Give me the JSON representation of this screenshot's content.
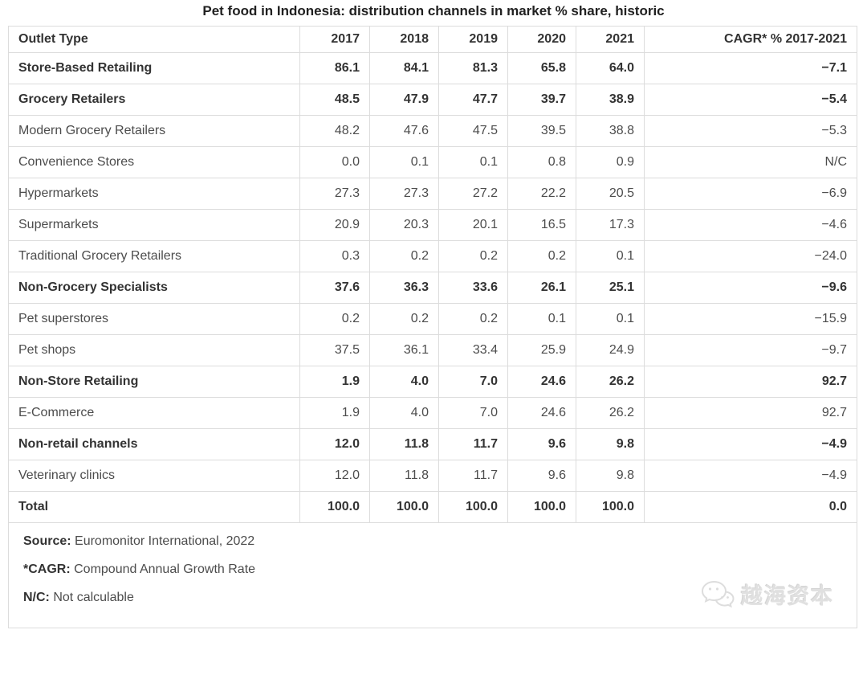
{
  "chart_data": {
    "type": "table",
    "title": "Pet food in Indonesia: distribution channels in market % share, historic",
    "columns": [
      "Outlet Type",
      "2017",
      "2018",
      "2019",
      "2020",
      "2021",
      "CAGR* % 2017-2021"
    ],
    "rows": [
      {
        "label": "Store-Based Retailing",
        "bold": true,
        "values": [
          "86.1",
          "84.1",
          "81.3",
          "65.8",
          "64.0",
          "−7.1"
        ]
      },
      {
        "label": "Grocery Retailers",
        "bold": true,
        "values": [
          "48.5",
          "47.9",
          "47.7",
          "39.7",
          "38.9",
          "−5.4"
        ]
      },
      {
        "label": "Modern Grocery Retailers",
        "bold": false,
        "values": [
          "48.2",
          "47.6",
          "47.5",
          "39.5",
          "38.8",
          "−5.3"
        ]
      },
      {
        "label": "Convenience Stores",
        "bold": false,
        "values": [
          "0.0",
          "0.1",
          "0.1",
          "0.8",
          "0.9",
          "N/C"
        ]
      },
      {
        "label": "Hypermarkets",
        "bold": false,
        "values": [
          "27.3",
          "27.3",
          "27.2",
          "22.2",
          "20.5",
          "−6.9"
        ]
      },
      {
        "label": "Supermarkets",
        "bold": false,
        "values": [
          "20.9",
          "20.3",
          "20.1",
          "16.5",
          "17.3",
          "−4.6"
        ]
      },
      {
        "label": "Traditional Grocery Retailers",
        "bold": false,
        "values": [
          "0.3",
          "0.2",
          "0.2",
          "0.2",
          "0.1",
          "−24.0"
        ]
      },
      {
        "label": "Non-Grocery Specialists",
        "bold": true,
        "values": [
          "37.6",
          "36.3",
          "33.6",
          "26.1",
          "25.1",
          "−9.6"
        ]
      },
      {
        "label": "Pet superstores",
        "bold": false,
        "values": [
          "0.2",
          "0.2",
          "0.2",
          "0.1",
          "0.1",
          "−15.9"
        ]
      },
      {
        "label": "Pet shops",
        "bold": false,
        "values": [
          "37.5",
          "36.1",
          "33.4",
          "25.9",
          "24.9",
          "−9.7"
        ]
      },
      {
        "label": "Non-Store Retailing",
        "bold": true,
        "values": [
          "1.9",
          "4.0",
          "7.0",
          "24.6",
          "26.2",
          "92.7"
        ]
      },
      {
        "label": "E-Commerce",
        "bold": false,
        "values": [
          "1.9",
          "4.0",
          "7.0",
          "24.6",
          "26.2",
          "92.7"
        ]
      },
      {
        "label": "Non-retail channels",
        "bold": true,
        "values": [
          "12.0",
          "11.8",
          "11.7",
          "9.6",
          "9.8",
          "−4.9"
        ]
      },
      {
        "label": "Veterinary clinics",
        "bold": false,
        "values": [
          "12.0",
          "11.8",
          "11.7",
          "9.6",
          "9.8",
          "−4.9"
        ]
      },
      {
        "label": "Total",
        "bold": true,
        "values": [
          "100.0",
          "100.0",
          "100.0",
          "100.0",
          "100.0",
          "0.0"
        ]
      }
    ],
    "layout": {
      "first_column_align": "left",
      "value_columns_align": "right",
      "grid": true
    }
  },
  "footer": {
    "notes": [
      {
        "prefix": "Source:",
        "text": "Euromonitor International, 2022"
      },
      {
        "prefix": "*CAGR:",
        "text": "Compound Annual Growth Rate"
      },
      {
        "prefix": "N/C:",
        "text": "Not calculable"
      }
    ],
    "watermark": {
      "icon": "wechat-icon",
      "text": "越海资本"
    }
  },
  "colors": {
    "title_text": "#212121",
    "header_text": "#333333",
    "bold_row_text": "#333333",
    "regular_row_text": "#4c4c4c",
    "border": "#dcdcdc",
    "background": "#ffffff",
    "watermark": "#e0e0e0"
  }
}
